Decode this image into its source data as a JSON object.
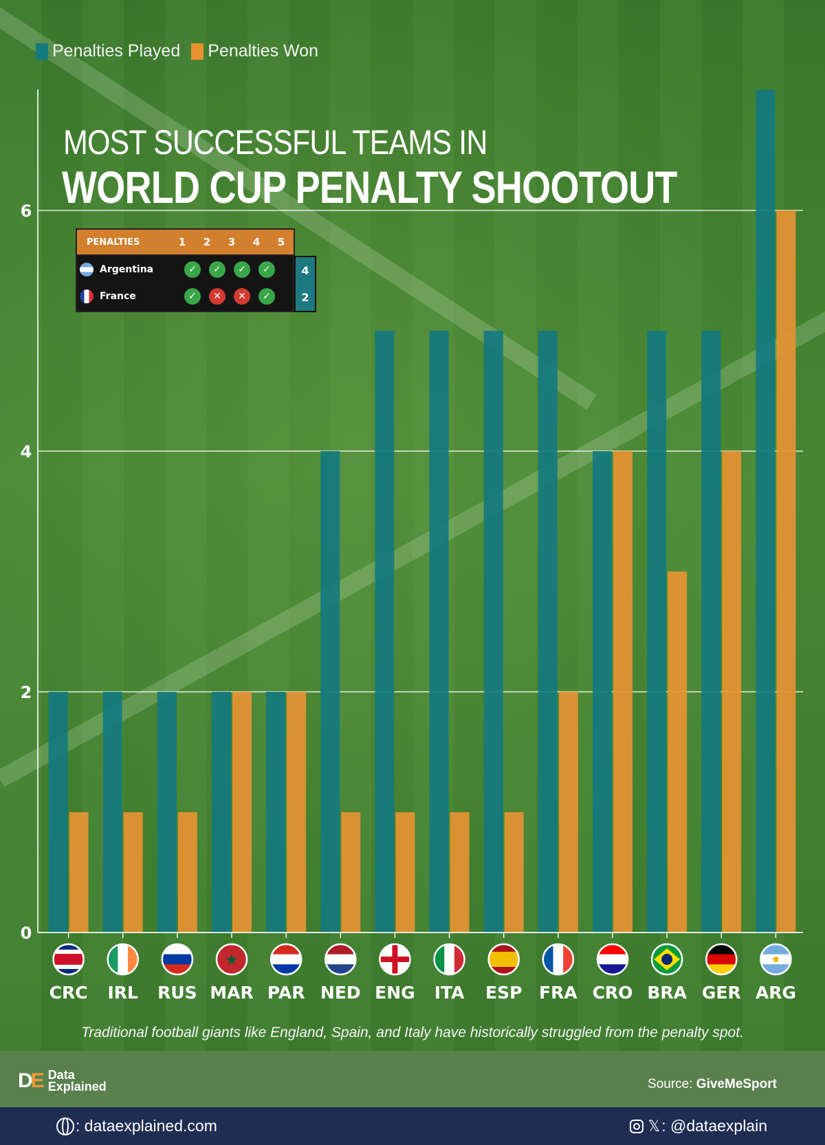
{
  "legend": {
    "played_label": "Penalties Played",
    "won_label": "Penalties Won"
  },
  "title": {
    "line1": "MOST SUCCESSFUL TEAMS IN",
    "line2": "WORLD CUP PENALTY SHOOTOUT"
  },
  "colors": {
    "played": "#137a7f",
    "won": "#e69232",
    "grid": "#ffffff"
  },
  "shootout": {
    "header_label": "PENALTIES",
    "columns": [
      "1",
      "2",
      "3",
      "4",
      "5"
    ],
    "rows": [
      {
        "team": "Argentina",
        "marks": [
          "ok",
          "ok",
          "ok",
          "ok"
        ],
        "total": "4"
      },
      {
        "team": "France",
        "marks": [
          "ok",
          "no",
          "no",
          "ok"
        ],
        "total": "2"
      }
    ]
  },
  "chart_data": {
    "type": "bar",
    "categories": [
      "CRC",
      "IRL",
      "RUS",
      "MAR",
      "PAR",
      "NED",
      "ENG",
      "ITA",
      "ESP",
      "FRA",
      "CRO",
      "BRA",
      "GER",
      "ARG"
    ],
    "series": [
      {
        "name": "Penalties Played",
        "values": [
          2,
          2,
          2,
          2,
          2,
          4,
          5,
          5,
          5,
          5,
          4,
          5,
          5,
          7
        ]
      },
      {
        "name": "Penalties Won",
        "values": [
          1,
          1,
          1,
          2,
          2,
          1,
          1,
          1,
          1,
          2,
          4,
          3,
          4,
          6
        ]
      }
    ],
    "yticks": [
      "0",
      "2",
      "4",
      "6"
    ],
    "ylim": [
      0,
      7
    ],
    "grid": true,
    "legend_position": "top-left",
    "xlabel": "",
    "ylabel": ""
  },
  "footnote": "Traditional football giants like England, Spain, and Italy have historically struggled from the penalty spot.",
  "footer": {
    "brand_line1": "Data",
    "brand_line2": "Explained",
    "source_prefix": "Source: ",
    "source_name": "GiveMeSport",
    "website": ": dataexplained.com",
    "handle": ": @dataexplain"
  }
}
